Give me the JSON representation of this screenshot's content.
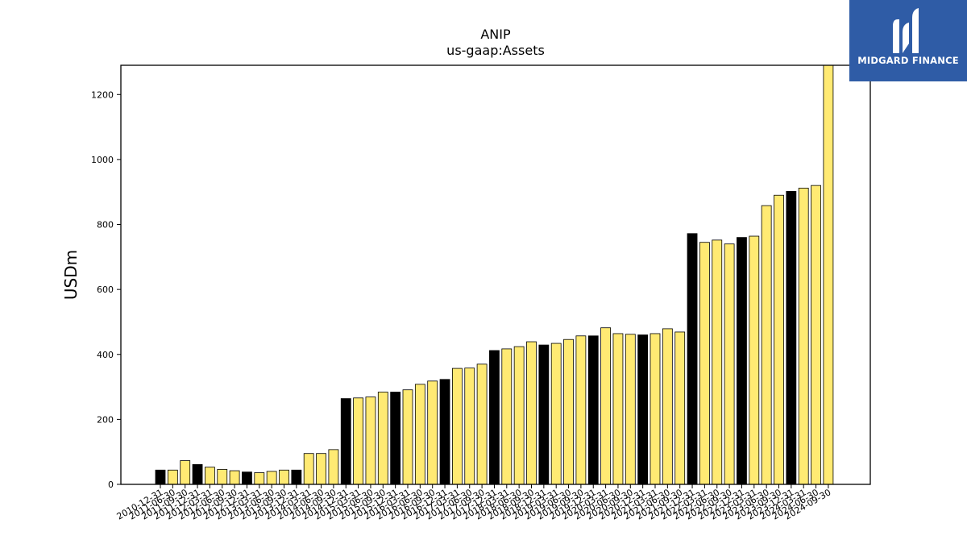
{
  "chart_data": {
    "type": "bar",
    "title": "ANIP",
    "subtitle": "us-gaap:Assets",
    "ylabel": "USDm",
    "xlabel": "",
    "ylim": [
      0,
      1290
    ],
    "yticks": [
      0,
      200,
      400,
      600,
      800,
      1000,
      1200
    ],
    "grid": false,
    "categories": [
      "2010-12-31",
      "2011-06-30",
      "2011-09-30",
      "2011-12-31",
      "2012-03-31",
      "2012-06-30",
      "2012-09-30",
      "2012-12-31",
      "2013-03-31",
      "2013-06-30",
      "2013-09-30",
      "2013-12-31",
      "2014-03-31",
      "2014-06-30",
      "2014-09-30",
      "2014-12-31",
      "2015-03-31",
      "2015-06-30",
      "2015-09-30",
      "2015-12-31",
      "2016-03-31",
      "2016-06-30",
      "2016-09-30",
      "2016-12-31",
      "2017-03-31",
      "2017-06-30",
      "2017-09-30",
      "2017-12-31",
      "2018-03-31",
      "2018-06-30",
      "2018-09-30",
      "2018-12-31",
      "2019-03-31",
      "2019-06-30",
      "2019-09-30",
      "2019-12-31",
      "2020-03-31",
      "2020-06-30",
      "2020-09-30",
      "2020-12-31",
      "2021-03-31",
      "2021-06-30",
      "2021-09-30",
      "2021-12-31",
      "2022-03-31",
      "2022-06-30",
      "2022-09-30",
      "2022-12-31",
      "2023-03-31",
      "2023-06-30",
      "2023-09-30",
      "2023-12-31",
      "2024-03-31",
      "2024-06-30",
      "2024-09-30"
    ],
    "values": [
      44,
      44,
      73,
      61,
      53,
      46,
      42,
      38,
      36,
      40,
      44,
      44,
      95,
      95,
      107,
      264,
      266,
      269,
      284,
      284,
      291,
      308,
      318,
      323,
      357,
      358,
      370,
      412,
      417,
      424,
      439,
      429,
      434,
      446,
      457,
      457,
      482,
      464,
      462,
      460,
      464,
      479,
      469,
      772,
      745,
      752,
      740,
      760,
      764,
      858,
      890,
      902,
      912,
      920,
      1290
    ],
    "highlight": [
      true,
      false,
      false,
      true,
      false,
      false,
      false,
      true,
      false,
      false,
      false,
      true,
      false,
      false,
      false,
      true,
      false,
      false,
      false,
      true,
      false,
      false,
      false,
      true,
      false,
      false,
      false,
      true,
      false,
      false,
      false,
      true,
      false,
      false,
      false,
      true,
      false,
      false,
      false,
      true,
      false,
      false,
      false,
      true,
      false,
      false,
      false,
      true,
      false,
      false,
      false,
      true,
      false,
      false,
      false
    ],
    "colors": {
      "highlight": "#000000",
      "normal": "#ffea73",
      "edge": "#000000"
    }
  },
  "logo": {
    "text": "MIDGARD FINANCE",
    "color": "#2f5ca6"
  }
}
